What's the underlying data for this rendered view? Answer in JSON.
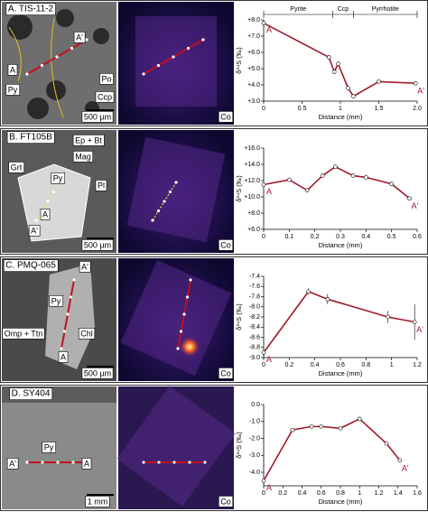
{
  "chart_data": [
    {
      "type": "line",
      "ylabel": "δ³⁴S (‰)",
      "xlabel": "Distance (mm)",
      "x": [
        0,
        0.85,
        0.92,
        0.97,
        1.1,
        1.17,
        1.5,
        1.98
      ],
      "series": [
        {
          "color": "#a0182a",
          "values": [
            7.8,
            5.7,
            4.8,
            5.3,
            3.8,
            3.3,
            4.2,
            4.1
          ]
        }
      ],
      "xlim": [
        0,
        2.0
      ],
      "xticks": [
        0,
        0.5,
        1,
        1.5,
        {
          "value": 2.0,
          "label": "2.0"
        }
      ],
      "ylim": [
        3,
        8
      ],
      "yticks": [
        {
          "value": 8,
          "label": "+8.0"
        },
        {
          "value": 7,
          "label": "+7.0"
        },
        {
          "value": 6,
          "label": "+6.0"
        },
        {
          "value": 5,
          "label": "+5.0"
        },
        {
          "value": 4,
          "label": "+4.0"
        },
        {
          "value": 3,
          "label": "+3.0"
        }
      ],
      "point_labels": [
        "A",
        "A'"
      ],
      "zones": [
        "Pyrite",
        "Ccp",
        "Pyrrhotite"
      ],
      "zone_bounds": [
        0,
        0.9,
        1.17,
        2.0
      ]
    },
    {
      "type": "line",
      "ylabel": "δ³⁴S (‰)",
      "xlabel": "Distance (mm)",
      "x": [
        0,
        0.1,
        0.17,
        0.23,
        0.28,
        0.35,
        0.4,
        0.5,
        0.57
      ],
      "series": [
        {
          "color": "#a0182a",
          "values": [
            11.5,
            12.1,
            10.8,
            12.6,
            13.7,
            12.6,
            12.4,
            11.6,
            9.8
          ]
        }
      ],
      "xlim": [
        0,
        0.6
      ],
      "xticks": [
        0,
        0.1,
        0.2,
        0.3,
        0.4,
        0.5,
        0.6
      ],
      "ylim": [
        6,
        16
      ],
      "yticks": [
        {
          "value": 16,
          "label": "+16.0"
        },
        {
          "value": 14,
          "label": "+14.0"
        },
        {
          "value": 12,
          "label": "+12.0"
        },
        {
          "value": 10,
          "label": "+10.0"
        },
        {
          "value": 8,
          "label": "+8.0"
        },
        {
          "value": 6,
          "label": "+6.0"
        }
      ],
      "point_labels": [
        "A",
        "A'"
      ]
    },
    {
      "type": "line",
      "ylabel": "δ³⁴S (‰)",
      "xlabel": "Distance (mm)",
      "x": [
        0,
        0.35,
        0.5,
        0.97,
        1.18
      ],
      "series": [
        {
          "color": "#a0182a",
          "values": [
            -8.9,
            -7.7,
            -7.85,
            -8.2,
            -8.3
          ],
          "errors": [
            0.05,
            0.06,
            0.1,
            0.12,
            0.35
          ]
        }
      ],
      "xlim": [
        0,
        1.2
      ],
      "xticks": [
        0,
        0.2,
        0.4,
        0.6,
        0.8,
        1,
        1.2
      ],
      "ylim": [
        -9.0,
        -7.4
      ],
      "yticks": [
        -7.4,
        -7.6,
        -7.8,
        {
          "value": -8.0,
          "label": "-8.0"
        },
        -8.2,
        -8.4,
        -8.6,
        -8.8,
        {
          "value": -9.0,
          "label": "-9.0"
        }
      ],
      "point_labels": [
        "A",
        "A'"
      ]
    },
    {
      "type": "line",
      "ylabel": "δ³⁴S (‰)",
      "xlabel": "Distance (mm)",
      "x": [
        0,
        0.3,
        0.5,
        0.6,
        0.8,
        1.0,
        1.28,
        1.42
      ],
      "series": [
        {
          "color": "#a0182a",
          "values": [
            -4.5,
            -1.5,
            -1.3,
            -1.3,
            -1.4,
            -0.85,
            -2.3,
            -3.3
          ]
        }
      ],
      "xlim": [
        0,
        1.6
      ],
      "xticks": [
        0,
        0.2,
        0.4,
        0.6,
        0.8,
        1,
        1.2,
        1.4,
        1.6
      ],
      "ylim": [
        -4.8,
        0
      ],
      "yticks": [
        {
          "value": 0,
          "label": "0.0"
        },
        {
          "value": -1,
          "label": "-1.0"
        },
        {
          "value": -2,
          "label": "-2.0"
        },
        {
          "value": -3,
          "label": "-3.0"
        },
        {
          "value": -4,
          "label": "-4.0"
        }
      ],
      "point_labels": [
        "A",
        "A'"
      ]
    }
  ],
  "panels": [
    {
      "title": "A. TIS-11-2",
      "labels": [
        "A'",
        "A",
        "Py",
        "Po",
        "Ccp"
      ],
      "scale": "500 µm",
      "map": "Co"
    },
    {
      "title": "B. FT105B",
      "labels": [
        "Ep + Bt",
        "Grt",
        "Mag",
        "Py",
        "Pl",
        "A",
        "A'"
      ],
      "scale": "500 µm",
      "map": "Co"
    },
    {
      "title": "C. PMQ-065",
      "labels": [
        "A'",
        "Py",
        "Omp + Ttn",
        "Chl",
        "A"
      ],
      "scale": "500 µm",
      "map": "Co"
    },
    {
      "title": "D. SY404",
      "labels": [
        "A'",
        "Py",
        "A"
      ],
      "scale": "1 mm",
      "map": "Co"
    }
  ]
}
